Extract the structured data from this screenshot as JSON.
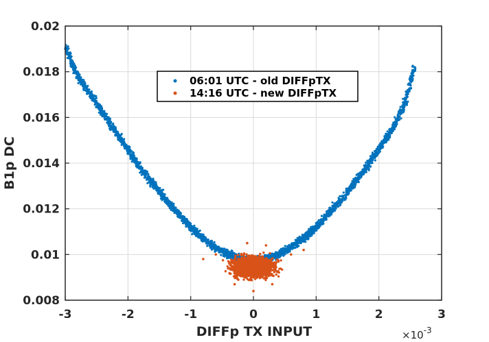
{
  "chart_data": {
    "type": "scatter",
    "xlabel": "DIFFp TX INPUT",
    "ylabel": "B1p DC",
    "x_scale_text": "×10",
    "x_scale_exponent": "-3",
    "xlim": [
      -0.003,
      0.003
    ],
    "ylim": [
      0.008,
      0.02
    ],
    "x_ticks": [
      -3,
      -2,
      -1,
      0,
      1,
      2,
      3
    ],
    "x_tick_labels": [
      "-3",
      "-2",
      "-1",
      "0",
      "1",
      "2",
      "3"
    ],
    "y_ticks": [
      0.008,
      0.01,
      0.012,
      0.014,
      0.016,
      0.018,
      0.02
    ],
    "y_tick_labels": [
      "0.008",
      "0.01",
      "0.012",
      "0.014",
      "0.016",
      "0.018",
      "0.02"
    ],
    "grid": true,
    "legend_placement": "top-center",
    "series": [
      {
        "name": "06:01 UTC - old DIFFpTX",
        "color": "#0072BD",
        "points": [
          [
            -0.00299,
            0.01905
          ],
          [
            -0.0028,
            0.0178
          ],
          [
            -0.0026,
            0.017
          ],
          [
            -0.0024,
            0.0162
          ],
          [
            -0.0022,
            0.0154
          ],
          [
            -0.002,
            0.0146
          ],
          [
            -0.0018,
            0.0138
          ],
          [
            -0.0016,
            0.0131
          ],
          [
            -0.0014,
            0.0124
          ],
          [
            -0.0012,
            0.0118
          ],
          [
            -0.001,
            0.0112
          ],
          [
            -0.0008,
            0.0107
          ],
          [
            -0.0006,
            0.0103
          ],
          [
            -0.0004,
            0.01
          ],
          [
            -0.0002,
            0.0098
          ],
          [
            0.0,
            0.0097
          ],
          [
            0.0002,
            0.0098
          ],
          [
            0.0004,
            0.01
          ],
          [
            0.0006,
            0.0103
          ],
          [
            0.0008,
            0.0107
          ],
          [
            0.001,
            0.0112
          ],
          [
            0.0012,
            0.0118
          ],
          [
            0.0014,
            0.0124
          ],
          [
            0.0016,
            0.0131
          ],
          [
            0.0018,
            0.0138
          ],
          [
            0.002,
            0.0146
          ],
          [
            0.0022,
            0.0154
          ],
          [
            0.0024,
            0.0165
          ],
          [
            0.00257,
            0.0182
          ]
        ]
      },
      {
        "name": "14:16 UTC - new DIFFpTX",
        "color": "#D95319",
        "points": [
          [
            -0.0008,
            0.0098
          ],
          [
            -0.0006,
            0.01
          ],
          [
            -0.0004,
            0.0097
          ],
          [
            -0.0002,
            0.0095
          ],
          [
            0.0,
            0.0094
          ],
          [
            0.0002,
            0.0095
          ],
          [
            0.0004,
            0.0097
          ],
          [
            0.0006,
            0.01
          ],
          [
            0.0008,
            0.0102
          ],
          [
            -0.0003,
            0.0087
          ],
          [
            0.0,
            0.0084
          ],
          [
            0.0003,
            0.0087
          ],
          [
            -0.0001,
            0.0105
          ],
          [
            0.0002,
            0.0104
          ]
        ]
      }
    ]
  }
}
